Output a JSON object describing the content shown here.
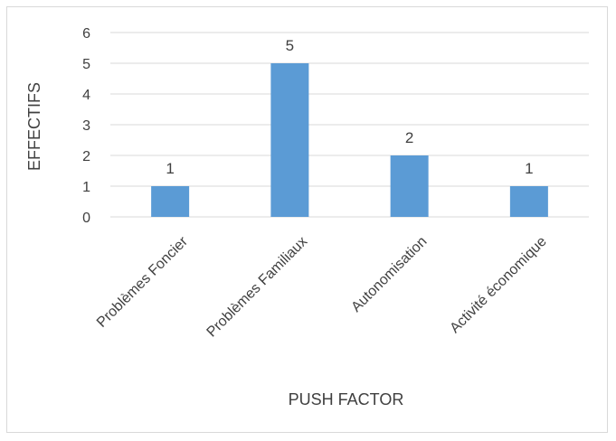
{
  "chart_data": {
    "type": "bar",
    "categories": [
      "Problèmes Foncier",
      "Problèmes Familiaux",
      "Autonomisation",
      "Activité économique"
    ],
    "values": [
      1,
      5,
      2,
      1
    ],
    "data_labels": [
      "1",
      "5",
      "2",
      "1"
    ],
    "xlabel": "PUSH FACTOR",
    "ylabel": "EFFECTIFS",
    "ylim": [
      0,
      6
    ],
    "yticks": [
      "0",
      "1",
      "2",
      "3",
      "4",
      "5",
      "6"
    ],
    "grid": true,
    "legend": "none",
    "bar_color": "#5b9bd5",
    "grid_color": "#d9d9d9"
  }
}
